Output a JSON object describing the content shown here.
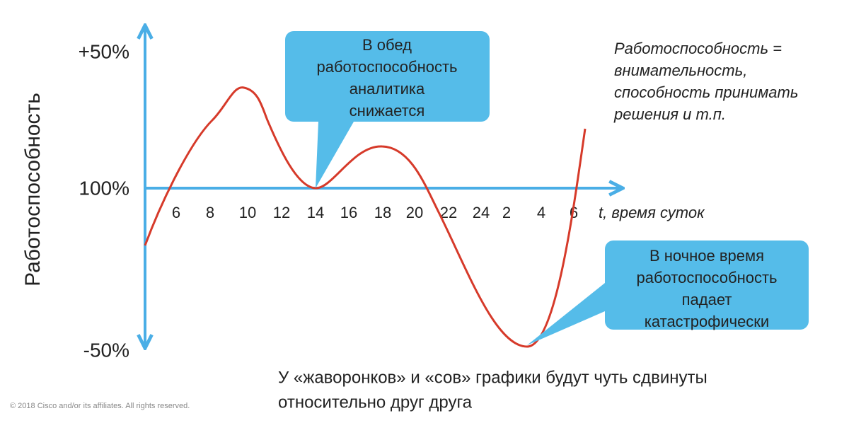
{
  "y_axis": {
    "title": "Работоспособность",
    "labels": [
      "+50%",
      "100%",
      "-50%"
    ]
  },
  "x_axis": {
    "ticks": [
      "6",
      "8",
      "10",
      "12",
      "14",
      "16",
      "18",
      "20",
      "22",
      "24",
      "2",
      "4",
      "6"
    ],
    "var": "t",
    "title": ", время суток"
  },
  "callouts": [
    {
      "lines": [
        "В обед",
        "работоспособность",
        "аналитика",
        "снижается"
      ]
    },
    {
      "lines": [
        "В ночное время",
        "работоспособность",
        "падает",
        "катастрофически"
      ]
    }
  ],
  "note": [
    "Работоспособность =",
    "внимательность,",
    "способность принимать",
    "решения и т.п."
  ],
  "bottom": [
    "У «жаворонков» и «сов» графики будут чуть сдвинуты",
    "относительно друг друга"
  ],
  "footer": "© 2018  Cisco and/or its affiliates. All rights reserved."
}
